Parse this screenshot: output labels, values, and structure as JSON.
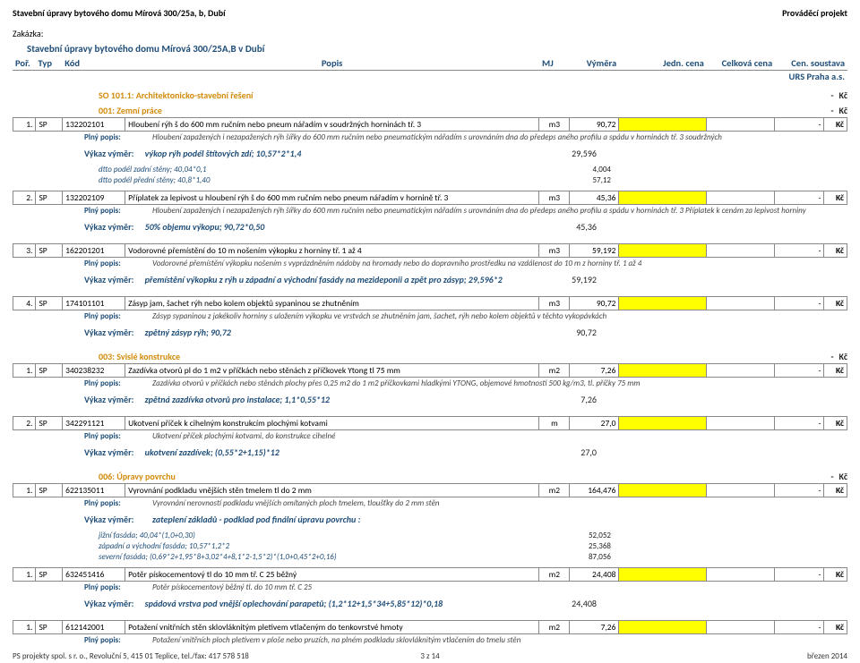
{
  "c": {
    "brand": "#1f4e79",
    "accent": "#d18b0a",
    "yellow": "#ffff00",
    "border": "#888888",
    "bg": "#ffffff"
  },
  "widths": {
    "por": 24,
    "typ": 28,
    "kod": 66,
    "popis": 436,
    "mj": 32,
    "vymera": 52,
    "jedn": 92,
    "celk": 72,
    "cen": 52,
    "kc": 24
  },
  "header": {
    "title_top": "Stavební úpravy bytového domu Mírová 300/25a, b, Dubí",
    "title_right": "Prováděcí projekt",
    "zakazka_label": "Zakázka:",
    "doc_title": "Stavební úpravy bytového domu Mírová 300/25A,B v Dubí",
    "cols": {
      "por": "Poř.",
      "typ": "Typ",
      "kod": "Kód",
      "popis": "Popis",
      "mj": "MJ",
      "vymera": "Výměra",
      "jedn": "Jedn. cena",
      "celk": "Celková cena",
      "cen": "Cen. soustava"
    },
    "urs": "URS Praha a.s."
  },
  "footer": {
    "left": "PS projekty spol. s r. o., Revoluční 5, 415 01 Teplice, tel./fax: 417 578 518",
    "center": "3 z 14",
    "right": "březen 2014"
  },
  "labels": {
    "plny": "Plný popis:",
    "vykaz": "Výkaz výměr:",
    "dash": "-",
    "kc": "Kč"
  },
  "sections": [
    {
      "title": "SO 101.1: Architektonicko-stavební řešení",
      "groups": [
        {
          "title": "001: Zemní práce",
          "rows": [
            {
              "por": "1.",
              "typ": "SP",
              "kod": "132202101",
              "popis": "Hloubení rýh š do 600 mm ručním nebo pneum nářadím v soudržných horninách tř. 3",
              "mj": "m3",
              "vymera": "90,72",
              "plny": "Hloubení zapažených i nezapažených rýh šířky do 600 mm ručním nebo pneumatickým nářadím  s urovnáním dna do předeps aného profilu a spádu v horninách tř. 3  soudržných",
              "vykaz": [
                {
                  "t": "výkop rýh podél štítových zdí; 10,57*2*1,4",
                  "v": "29,596"
                },
                {
                  "t": "dtto podél zadní stěny; 40,04*0,1",
                  "v": "4,004"
                },
                {
                  "t": "dtto podél přední stěny; 40,8*1,40",
                  "v": "57,12"
                }
              ]
            },
            {
              "por": "2.",
              "typ": "SP",
              "kod": "132202109",
              "popis": "Příplatek za lepivost u hloubení rýh š do 600 mm ručním nebo pneum nářadím v hornině tř. 3",
              "mj": "m3",
              "vymera": "45,36",
              "plny": "Hloubení zapažených i nezapažených rýh šířky do 600 mm ručním nebo pneumatickým nářadím  s urovnáním dna do předeps aného profilu a spádu v horninách tř. 3  Příplatek k cenám   za lepivost horniny",
              "vykaz": [
                {
                  "t": "50% objemu výkopu; 90,72*0,50",
                  "v": "45,36"
                }
              ]
            },
            {
              "por": "3.",
              "typ": "SP",
              "kod": "162201201",
              "popis": "Vodorovné přemístění do 10 m nošením výkopku z horniny tř. 1 až 4",
              "mj": "m3",
              "vymera": "59,192",
              "plny": "Vodorovné přemístění výkopku nošením  s vyprázdněním nádoby na hromady nebo do dopravního prostředku na vzdálenost do 10 m  z horniny   tř. 1 až 4",
              "vykaz": [
                {
                  "t": "přemístění výkopku z rýh u západní a východní fasády na mezideponii a zpět pro zásyp; 29,596*2",
                  "v": "59,192"
                }
              ]
            },
            {
              "por": "4.",
              "typ": "SP",
              "kod": "174101101",
              "popis": "Zásyp jam, šachet rýh nebo kolem objektů sypaninou se zhutněním",
              "mj": "m3",
              "vymera": "90,72",
              "plny": "Zásyp sypaninou z jakékoliv horniny  s uložením výkopku ve vrstvách  se zhutněním   jam, šachet, rýh nebo kolem objektů v těchto vykopávkách",
              "vykaz": [
                {
                  "t": "zpětný zásyp rýh; 90,72",
                  "v": "90,72"
                }
              ]
            }
          ]
        },
        {
          "title": "003: Svislé konstrukce",
          "rows": [
            {
              "por": "1.",
              "typ": "SP",
              "kod": "340238232",
              "popis": "Zazdívka otvorů pl do 1 m2 v příčkách nebo stěnách z příčkovek Ytong tl 75 mm",
              "mj": "m2",
              "vymera": "7,26",
              "plny": "Zazdívka otvorů v příčkách nebo stěnách  plochy přes 0,25 m2 do 1 m2  příčkovkami hladkými YTONG, objemové hmotnosti   500 kg/m3, tl. příčky 75 mm",
              "vykaz": [
                {
                  "t": "zpětná zazdívka otvorů pro instalace; 1,1*0,55*12",
                  "v": "7,26"
                }
              ]
            },
            {
              "por": "2.",
              "typ": "SP",
              "kod": "342291121",
              "popis": "Ukotvení příček k cihelným konstrukcím plochými kotvami",
              "mj": "m",
              "vymera": "27,0",
              "plny": "Ukotvení příček  plochými kotvami, do konstrukce  cihelné",
              "vykaz": [
                {
                  "t": "ukotvení zazdívek; (0,55*2+1,15)*12",
                  "v": "27,0"
                }
              ]
            }
          ]
        },
        {
          "title": "006: Úpravy povrchu",
          "rows": [
            {
              "por": "1.",
              "typ": "SP",
              "kod": "622135011",
              "popis": "Vyrovnání podkladu vnějších stěn tmelem tl do 2 mm",
              "mj": "m2",
              "vymera": "164,476",
              "plny": "Vyrovnání nerovností podkladu vnějších omítaných ploch  tmelem, tloušťky do 2 mm   stěn",
              "vykaz_label_only": "zateplení základů - podklad pod finální úpravu povrchu :",
              "vykaz": [
                {
                  "t": "jižní fasáda; 40,04*(1,0+0,30)",
                  "v": "52,052"
                },
                {
                  "t": "západní a východní fasáda; 10,57*1,2*2",
                  "v": "25,368"
                },
                {
                  "t": "severní fasáda; (0,69*2+1,95*8+3,02*4+8,1*2-1,5*2)*(1,0+0,45*2+0,16)",
                  "v": "87,056"
                }
              ]
            },
            {
              "por": "1.",
              "typ": "SP",
              "kod": "632451416",
              "popis": "Potěr pískocementový tl do 10 mm tř. C 25 běžný",
              "mj": "m2",
              "vymera": "24,408",
              "plny": "Potěr pískocementový běžný  tl. do 10 mm   tř. C 25",
              "vykaz": [
                {
                  "t": "spádová vrstva pod vnější oplechování parapetů; (1,2*12+1,5*34+5,85*12)*0,18",
                  "v": "24,408"
                }
              ]
            }
          ]
        },
        {
          "title": "",
          "rows": [
            {
              "por": "1.",
              "typ": "SP",
              "kod": "612142001",
              "popis": "Potažení vnitřních stěn sklovláknitým pletivem vtlačeným do tenkovrstvé hmoty",
              "mj": "m2",
              "vymera": "7,26",
              "plny": "Potažení vnitřních ploch pletivem  v ploše nebo pruzích, na plném podkladu  sklovláknitým   vtlačením do tmelu  stěn"
            }
          ]
        }
      ]
    }
  ]
}
